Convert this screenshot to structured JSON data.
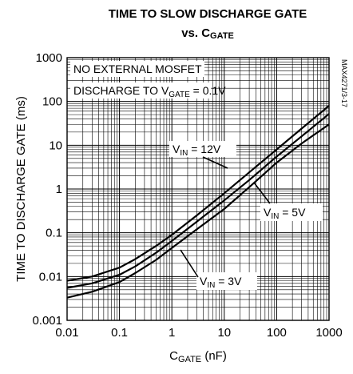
{
  "chart_data": {
    "type": "line",
    "title_line1": "TIME TO SLOW DISCHARGE GATE",
    "title_line2": {
      "prefix": "vs. C",
      "sub": "GATE"
    },
    "xlabel": {
      "main": "C",
      "sub": "GATE",
      "suffix": " (nF)"
    },
    "ylabel": "TIME TO DISCHARGE GATE (ms)",
    "x_scale": "log",
    "y_scale": "log",
    "xlim": [
      0.01,
      1000
    ],
    "ylim": [
      0.001,
      1000
    ],
    "grid": true,
    "x_ticks": [
      "0.01",
      "0.1",
      "1",
      "10",
      "100",
      "1000"
    ],
    "y_ticks": [
      "0.001",
      "0.01",
      "0.1",
      "1",
      "10",
      "100",
      "1000"
    ],
    "part_number": "MAX4271/3-17",
    "annotations": {
      "line1": "NO EXTERNAL MOSFET",
      "line2": {
        "prefix": "DISCHARGE TO V",
        "sub": "GATE",
        "suffix": " = 0.1V"
      }
    },
    "series": [
      {
        "name": "VIN = 12V",
        "label": {
          "main": "V",
          "sub": "IN",
          "suffix": " = 12V"
        },
        "x": [
          0.01,
          0.03,
          0.1,
          0.2,
          0.5,
          1,
          3,
          10,
          30,
          100,
          300,
          1000
        ],
        "y": [
          0.008,
          0.01,
          0.016,
          0.025,
          0.05,
          0.09,
          0.25,
          0.8,
          2.4,
          8,
          24,
          80
        ]
      },
      {
        "name": "VIN = 5V",
        "label": {
          "main": "V",
          "sub": "IN",
          "suffix": " = 5V"
        },
        "x": [
          0.01,
          0.03,
          0.1,
          0.2,
          0.5,
          1,
          3,
          10,
          30,
          100,
          300,
          1000
        ],
        "y": [
          0.0055,
          0.007,
          0.011,
          0.017,
          0.035,
          0.065,
          0.18,
          0.55,
          1.6,
          5.5,
          16,
          52
        ]
      },
      {
        "name": "VIN = 3V",
        "label": {
          "main": "V",
          "sub": "IN",
          "suffix": " = 3V"
        },
        "x": [
          0.01,
          0.03,
          0.1,
          0.2,
          0.5,
          1,
          3,
          10,
          30,
          100,
          300,
          1000
        ],
        "y": [
          0.0033,
          0.0045,
          0.0075,
          0.012,
          0.024,
          0.045,
          0.12,
          0.35,
          1.1,
          4,
          11,
          30
        ]
      }
    ]
  }
}
